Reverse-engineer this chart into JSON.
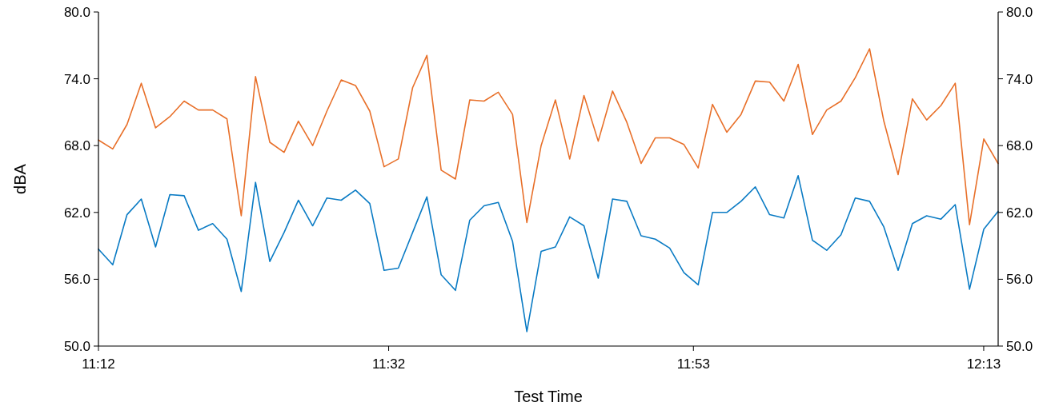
{
  "chart_data": {
    "type": "line",
    "xlabel": "Test Time",
    "ylabel": "dBA",
    "x": [
      11.2,
      11.2164,
      11.2328,
      11.2492,
      11.2656,
      11.282,
      11.2984,
      11.3148,
      11.3312,
      11.3476,
      11.364,
      11.3804,
      11.3968,
      11.4132,
      11.4296,
      11.446,
      11.4624,
      11.4788,
      11.4952,
      11.5116,
      11.528,
      11.5444,
      11.5608,
      11.5772,
      11.5936,
      11.61,
      11.6264,
      11.6428,
      11.6592,
      11.6756,
      11.692,
      11.7084,
      11.7248,
      11.7412,
      11.7576,
      11.774,
      11.7904,
      11.8068,
      11.8232,
      11.8396,
      11.856,
      11.8724,
      11.8888,
      11.9052,
      11.9216,
      11.938,
      11.9544,
      11.9708,
      11.9872,
      12.0036,
      12.02,
      12.0364,
      12.0528,
      12.0692,
      12.0856,
      12.102,
      12.1184,
      12.1348,
      12.1512,
      12.1676,
      12.184,
      12.2004,
      12.2168,
      12.2332
    ],
    "series": [
      {
        "color": "#e8702a",
        "values": [
          68.5,
          67.7,
          69.9,
          73.6,
          69.6,
          70.6,
          72.0,
          71.2,
          71.2,
          70.4,
          61.7,
          74.2,
          68.3,
          67.4,
          70.2,
          68.0,
          71.1,
          73.9,
          73.4,
          71.1,
          66.1,
          66.8,
          73.2,
          76.1,
          65.8,
          65.0,
          72.1,
          72.0,
          72.8,
          70.8,
          61.1,
          68.0,
          72.1,
          66.8,
          72.5,
          68.4,
          72.9,
          70.1,
          66.4,
          68.7,
          68.7,
          68.1,
          66.0,
          71.7,
          69.2,
          70.8,
          73.8,
          73.7,
          72.0,
          75.3,
          69.0,
          71.2,
          72.0,
          74.1,
          76.7,
          70.2,
          65.4,
          72.2,
          70.3,
          71.6,
          73.6,
          60.9,
          68.6,
          66.4
        ]
      },
      {
        "color": "#0a7bc4",
        "values": [
          58.7,
          57.3,
          61.8,
          63.2,
          58.9,
          63.6,
          63.5,
          60.4,
          61.0,
          59.6,
          54.9,
          64.7,
          57.6,
          60.2,
          63.1,
          60.8,
          63.3,
          63.1,
          64.0,
          62.8,
          56.8,
          57.0,
          60.2,
          63.4,
          56.4,
          55.0,
          61.3,
          62.6,
          62.9,
          59.4,
          51.3,
          58.5,
          58.9,
          61.6,
          60.8,
          56.1,
          63.2,
          63.0,
          59.9,
          59.6,
          58.8,
          56.6,
          55.5,
          62.0,
          62.0,
          63.0,
          64.3,
          61.8,
          61.5,
          65.3,
          59.5,
          58.6,
          60.0,
          63.3,
          63.0,
          60.7,
          56.8,
          61.0,
          61.7,
          61.4,
          62.7,
          55.1,
          60.5,
          62.1
        ]
      }
    ],
    "xlim": [
      11.2,
      12.2333
    ],
    "xticks": [
      {
        "value": 11.2,
        "label": "11:12"
      },
      {
        "value": 11.5333,
        "label": "11:32"
      },
      {
        "value": 11.8833,
        "label": "11:53"
      },
      {
        "value": 12.2167,
        "label": "12:13"
      }
    ],
    "ylim": [
      50,
      80
    ],
    "yticks": [
      {
        "value": 50,
        "label": "50.0"
      },
      {
        "value": 56,
        "label": "56.0"
      },
      {
        "value": 62,
        "label": "62.0"
      },
      {
        "value": 68,
        "label": "68.0"
      },
      {
        "value": 74,
        "label": "74.0"
      },
      {
        "value": 80,
        "label": "80.0"
      }
    ],
    "y2lim": [
      50,
      80
    ],
    "y2ticks": [
      {
        "value": 50,
        "label": "50.0"
      },
      {
        "value": 56,
        "label": "56.0"
      },
      {
        "value": 62,
        "label": "62.0"
      },
      {
        "value": 68,
        "label": "68.0"
      },
      {
        "value": 74,
        "label": "74.0"
      },
      {
        "value": 80,
        "label": "80.0"
      }
    ],
    "grid": false,
    "marker": "none",
    "line_style": "solid"
  }
}
